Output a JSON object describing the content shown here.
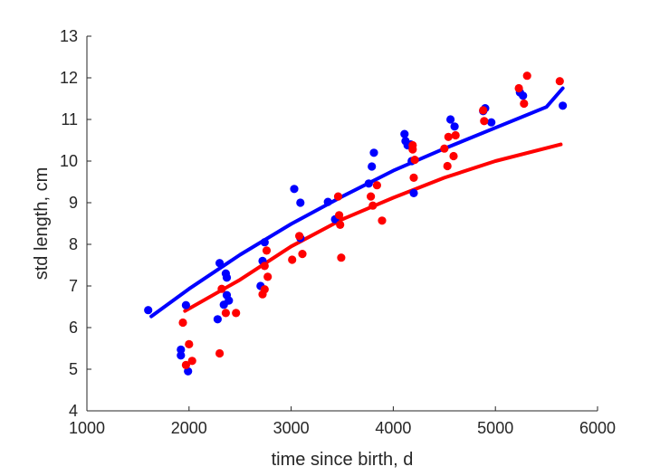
{
  "chart_data": {
    "type": "scatter",
    "title": "",
    "xlabel": "time since birth, d",
    "ylabel": "std length, cm",
    "xlim": [
      1000,
      6000
    ],
    "ylim": [
      4,
      13
    ],
    "xticks": [
      1000,
      2000,
      3000,
      4000,
      5000,
      6000
    ],
    "yticks": [
      4,
      5,
      6,
      7,
      8,
      9,
      10,
      11,
      12,
      13
    ],
    "grid": false,
    "legend": "none",
    "series": [
      {
        "color": "#0000ff",
        "points": [
          [
            1600,
            6.42
          ],
          [
            1920,
            5.47
          ],
          [
            1920,
            5.33
          ],
          [
            1970,
            6.54
          ],
          [
            1990,
            4.95
          ],
          [
            2280,
            6.2
          ],
          [
            2300,
            7.55
          ],
          [
            2340,
            6.55
          ],
          [
            2360,
            7.3
          ],
          [
            2370,
            7.2
          ],
          [
            2370,
            6.78
          ],
          [
            2390,
            6.65
          ],
          [
            2700,
            7.0
          ],
          [
            2720,
            7.6
          ],
          [
            2740,
            8.05
          ],
          [
            3030,
            9.33
          ],
          [
            3090,
            9.0
          ],
          [
            3090,
            8.15
          ],
          [
            3360,
            9.02
          ],
          [
            3430,
            8.6
          ],
          [
            3760,
            9.46
          ],
          [
            3790,
            9.87
          ],
          [
            3810,
            10.2
          ],
          [
            4110,
            10.65
          ],
          [
            4120,
            10.48
          ],
          [
            4140,
            10.38
          ],
          [
            4170,
            10.4
          ],
          [
            4180,
            10.0
          ],
          [
            4200,
            9.23
          ],
          [
            4560,
            11.0
          ],
          [
            4600,
            10.83
          ],
          [
            4880,
            11.2
          ],
          [
            4900,
            11.27
          ],
          [
            4960,
            10.93
          ],
          [
            5240,
            11.65
          ],
          [
            5270,
            11.57
          ],
          [
            5660,
            11.33
          ]
        ]
      },
      {
        "color": "#ff0000",
        "points": [
          [
            1940,
            6.12
          ],
          [
            1970,
            5.1
          ],
          [
            2000,
            5.6
          ],
          [
            2030,
            5.2
          ],
          [
            2300,
            5.38
          ],
          [
            2320,
            6.93
          ],
          [
            2360,
            6.35
          ],
          [
            2460,
            6.35
          ],
          [
            2720,
            6.8
          ],
          [
            2740,
            6.92
          ],
          [
            2740,
            7.48
          ],
          [
            2760,
            7.85
          ],
          [
            2770,
            7.22
          ],
          [
            3010,
            7.63
          ],
          [
            3080,
            8.2
          ],
          [
            3110,
            7.77
          ],
          [
            3460,
            9.15
          ],
          [
            3470,
            8.7
          ],
          [
            3480,
            8.47
          ],
          [
            3490,
            7.68
          ],
          [
            3780,
            9.15
          ],
          [
            3800,
            8.93
          ],
          [
            3840,
            9.42
          ],
          [
            3890,
            8.57
          ],
          [
            4190,
            10.38
          ],
          [
            4190,
            10.28
          ],
          [
            4200,
            9.6
          ],
          [
            4210,
            10.03
          ],
          [
            4500,
            10.3
          ],
          [
            4530,
            9.88
          ],
          [
            4540,
            10.58
          ],
          [
            4590,
            10.12
          ],
          [
            4610,
            10.62
          ],
          [
            4880,
            11.22
          ],
          [
            4890,
            10.96
          ],
          [
            5230,
            11.75
          ],
          [
            5280,
            11.38
          ],
          [
            5310,
            12.05
          ],
          [
            5630,
            11.92
          ]
        ]
      }
    ],
    "fits": [
      {
        "color": "#0000ff",
        "points": [
          [
            1630,
            6.27
          ],
          [
            2000,
            6.93
          ],
          [
            2500,
            7.75
          ],
          [
            3000,
            8.49
          ],
          [
            3500,
            9.15
          ],
          [
            4000,
            9.77
          ],
          [
            4500,
            10.3
          ],
          [
            5000,
            10.8
          ],
          [
            5500,
            11.3
          ],
          [
            5660,
            11.75
          ]
        ]
      },
      {
        "color": "#ff0000",
        "points": [
          [
            1960,
            6.4
          ],
          [
            2500,
            7.15
          ],
          [
            3000,
            7.95
          ],
          [
            3500,
            8.6
          ],
          [
            4000,
            9.12
          ],
          [
            4500,
            9.6
          ],
          [
            5000,
            10.0
          ],
          [
            5640,
            10.4
          ]
        ]
      }
    ]
  }
}
